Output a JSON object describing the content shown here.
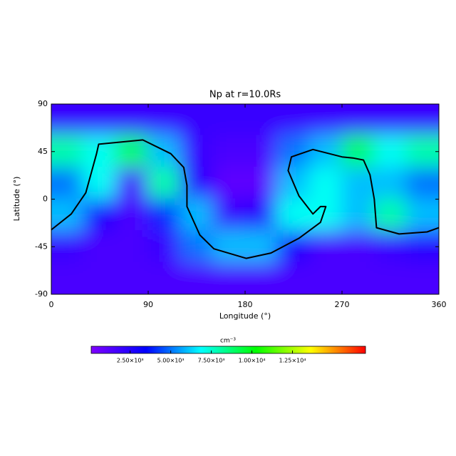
{
  "chart_data": {
    "type": "heatmap",
    "title": "Np at r=10.0Rs",
    "xlabel": "Longitude (°)",
    "ylabel": "Latitude (°)",
    "xlim": [
      0,
      360
    ],
    "ylim": [
      -90,
      90
    ],
    "xticks": [
      0,
      90,
      180,
      270,
      360
    ],
    "yticks": [
      -90,
      -45,
      0,
      45,
      90
    ],
    "z": [
      [
        2000,
        2000,
        2000,
        2000,
        2000,
        2000,
        2000,
        2000,
        2000,
        2000,
        2000,
        2000
      ],
      [
        8000,
        7000,
        9000,
        6000,
        2000,
        1500,
        1500,
        5000,
        6000,
        9000,
        7000,
        8000
      ],
      [
        5000,
        7000,
        1500,
        8000,
        2500,
        1000,
        1000,
        6000,
        7000,
        6000,
        6000,
        5000
      ],
      [
        6000,
        3000,
        1500,
        4000,
        6000,
        2000,
        2500,
        7000,
        7000,
        6000,
        8000,
        6000
      ],
      [
        2000,
        1500,
        1500,
        2000,
        5000,
        6000,
        6000,
        3000,
        1500,
        1500,
        2000,
        2500
      ],
      [
        1500,
        1500,
        1500,
        1500,
        1500,
        1500,
        1500,
        1500,
        1500,
        1500,
        1500,
        1500
      ]
    ],
    "colorscale": [
      "#7f00ff",
      "#0000ff",
      "#00ffff",
      "#00ff00",
      "#ffff00",
      "#ff0000"
    ],
    "clim": [
      100,
      17000
    ],
    "colorbar_label": "cm⁻³",
    "colorbar_ticks": [
      {
        "value": 2500,
        "label": "2.50×10³"
      },
      {
        "value": 5000,
        "label": "5.00×10³"
      },
      {
        "value": 7500,
        "label": "7.50×10³"
      },
      {
        "value": 10000,
        "label": "1.00×10⁴"
      },
      {
        "value": 12500,
        "label": "1.25×10⁴"
      }
    ],
    "contour": {
      "color": "#000000",
      "x": [
        0,
        18.5,
        32,
        42,
        44,
        85,
        111,
        123,
        126,
        126,
        138,
        151,
        181,
        204,
        230,
        250,
        255,
        250,
        243,
        230,
        220,
        223,
        243,
        270,
        280,
        290,
        296,
        300,
        302,
        323,
        349,
        360
      ],
      "y": [
        -29,
        -14,
        6,
        43,
        52,
        56,
        43,
        30,
        13,
        -7,
        -34,
        -47,
        -56,
        -51,
        -37,
        -22,
        -7,
        -7,
        -14,
        3,
        27,
        40,
        47,
        40,
        39,
        37,
        23,
        0,
        -27,
        -33,
        -31,
        -27
      ]
    }
  }
}
